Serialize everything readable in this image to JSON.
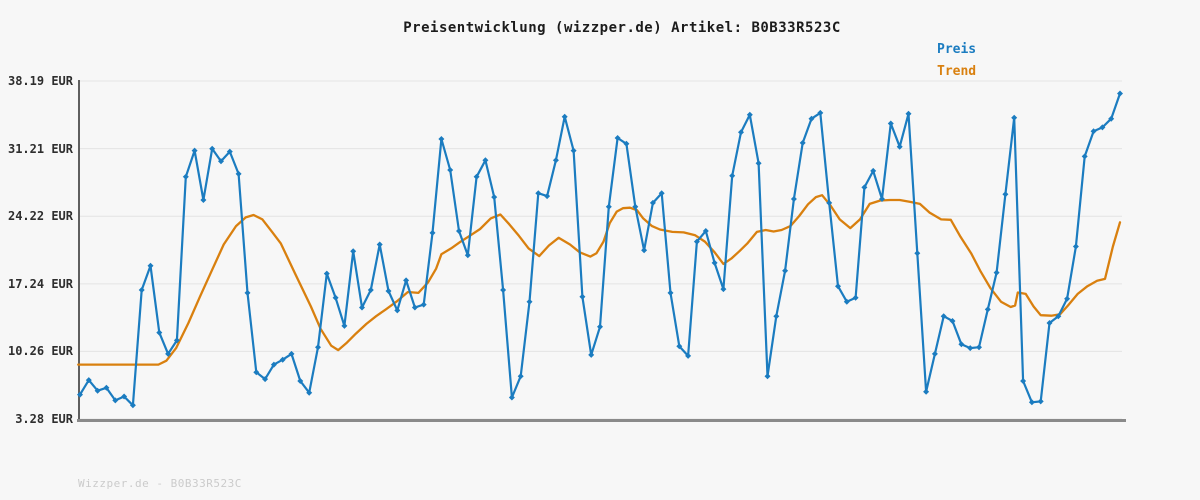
{
  "header": {
    "title": "Preisentwicklung (wizzper.de) Artikel: B0B33R523C"
  },
  "legend": [
    {
      "label": "Preis",
      "color": "#1b7cc0"
    },
    {
      "label": "Trend",
      "color": "#d9800f"
    }
  ],
  "footer": {
    "watermark": "Wizzper.de - B0B33R523C"
  },
  "colors": {
    "background": "#f7f7f7",
    "grid": "#e4e4e4",
    "y_axis_line": "#5f5f5f",
    "x_axis_line": "#8a8a8a",
    "price": "#1b7cc0",
    "trend": "#d9800f",
    "title_text": "#1c1c1c",
    "tick_text": "#2e2e2e",
    "watermark_text": "#cbcbcb"
  },
  "chart_data": {
    "type": "line",
    "title": "Preisentwicklung (wizzper.de) Artikel: B0B33R523C",
    "currency": "EUR",
    "legend_position": "top-right",
    "grid": true,
    "ylim": [
      3.28,
      38.19
    ],
    "y_axis": {
      "ticks": [
        {
          "label": "38.19 EUR",
          "value": 38.19
        },
        {
          "label": "31.21 EUR",
          "value": 31.21
        },
        {
          "label": "24.22 EUR",
          "value": 24.22
        },
        {
          "label": "17.24 EUR",
          "value": 17.24
        },
        {
          "label": "10.26 EUR",
          "value": 10.26
        },
        {
          "label": "3.28 EUR",
          "value": 3.28
        }
      ]
    },
    "x_axis": {
      "labels_visible": false,
      "sample_count": 119
    },
    "series": [
      {
        "name": "Preis",
        "style": "line+diamond-markers",
        "color": "#1b7cc0",
        "values": [
          5.8,
          7.3,
          6.2,
          6.5,
          5.2,
          5.6,
          4.7,
          16.6,
          19.1,
          12.2,
          10.0,
          11.4,
          28.3,
          31.0,
          25.9,
          31.2,
          29.9,
          30.9,
          28.6,
          16.3,
          8.1,
          7.4,
          8.9,
          9.4,
          10.0,
          7.2,
          6.0,
          10.7,
          18.3,
          15.8,
          12.9,
          20.6,
          14.8,
          16.6,
          21.3,
          16.5,
          14.5,
          17.6,
          14.8,
          15.1,
          22.5,
          32.2,
          29.0,
          22.7,
          20.2,
          28.3,
          30.0,
          26.2,
          16.6,
          5.5,
          7.7,
          15.4,
          26.6,
          26.3,
          30.0,
          34.5,
          31.0,
          15.9,
          9.9,
          12.8,
          25.2,
          32.3,
          31.7,
          25.2,
          20.7,
          25.6,
          26.6,
          16.3,
          10.8,
          9.8,
          21.6,
          22.7,
          19.4,
          16.7,
          28.4,
          32.9,
          34.7,
          29.7,
          7.7,
          13.9,
          18.6,
          26.0,
          31.8,
          34.3,
          34.9,
          25.6,
          17.0,
          15.4,
          15.8,
          27.2,
          28.9,
          26.0,
          33.8,
          31.4,
          34.8,
          20.4,
          6.1,
          10.0,
          13.9,
          13.4,
          11.0,
          10.6,
          10.7,
          14.6,
          18.4,
          26.5,
          34.4,
          7.2,
          5.0,
          5.1,
          13.2,
          13.9,
          15.7,
          21.1,
          30.4,
          33.0,
          33.4,
          34.3,
          36.9
        ]
      },
      {
        "name": "Trend",
        "style": "smooth-line",
        "color": "#d9800f",
        "points": [
          [
            -0.2,
            8.9
          ],
          [
            3,
            8.9
          ],
          [
            6,
            8.9
          ],
          [
            8.9,
            8.9
          ],
          [
            9.8,
            9.3
          ],
          [
            10.9,
            10.6
          ],
          [
            12.3,
            13.2
          ],
          [
            13.6,
            15.9
          ],
          [
            15.0,
            18.7
          ],
          [
            16.3,
            21.3
          ],
          [
            17.7,
            23.2
          ],
          [
            18.8,
            24.1
          ],
          [
            19.7,
            24.35
          ],
          [
            20.7,
            23.9
          ],
          [
            21.8,
            22.6
          ],
          [
            22.8,
            21.4
          ],
          [
            24.4,
            18.3
          ],
          [
            26.2,
            14.9
          ],
          [
            27.3,
            12.6
          ],
          [
            28.5,
            10.85
          ],
          [
            29.3,
            10.4
          ],
          [
            30.2,
            11.1
          ],
          [
            31.3,
            12.1
          ],
          [
            32.5,
            13.1
          ],
          [
            33.6,
            13.9
          ],
          [
            34.7,
            14.6
          ],
          [
            35.9,
            15.4
          ],
          [
            37.2,
            16.4
          ],
          [
            38.4,
            16.3
          ],
          [
            39.5,
            17.4
          ],
          [
            40.4,
            18.8
          ],
          [
            41.0,
            20.3
          ],
          [
            42.1,
            20.9
          ],
          [
            43.2,
            21.6
          ],
          [
            44.4,
            22.3
          ],
          [
            45.4,
            22.9
          ],
          [
            46.6,
            24.0
          ],
          [
            47.7,
            24.4
          ],
          [
            48.7,
            23.4
          ],
          [
            49.8,
            22.2
          ],
          [
            50.9,
            20.9
          ],
          [
            52.1,
            20.1
          ],
          [
            53.2,
            21.2
          ],
          [
            54.3,
            22.0
          ],
          [
            55.6,
            21.3
          ],
          [
            56.7,
            20.5
          ],
          [
            57.9,
            20.05
          ],
          [
            58.6,
            20.4
          ],
          [
            59.4,
            21.6
          ],
          [
            60.1,
            23.5
          ],
          [
            60.9,
            24.7
          ],
          [
            61.6,
            25.05
          ],
          [
            62.4,
            25.1
          ],
          [
            63.2,
            24.85
          ],
          [
            63.9,
            24.0
          ],
          [
            64.9,
            23.2
          ],
          [
            65.8,
            22.85
          ],
          [
            67.2,
            22.6
          ],
          [
            68.5,
            22.55
          ],
          [
            69.8,
            22.25
          ],
          [
            70.9,
            21.6
          ],
          [
            72.0,
            20.5
          ],
          [
            73.0,
            19.3
          ],
          [
            73.9,
            19.85
          ],
          [
            74.8,
            20.6
          ],
          [
            75.7,
            21.4
          ],
          [
            76.8,
            22.6
          ],
          [
            77.8,
            22.8
          ],
          [
            78.7,
            22.65
          ],
          [
            79.6,
            22.8
          ],
          [
            80.6,
            23.2
          ],
          [
            81.6,
            24.25
          ],
          [
            82.6,
            25.45
          ],
          [
            83.5,
            26.2
          ],
          [
            84.2,
            26.4
          ],
          [
            85.1,
            25.4
          ],
          [
            86.2,
            23.9
          ],
          [
            87.4,
            23.0
          ],
          [
            88.5,
            23.9
          ],
          [
            89.6,
            25.5
          ],
          [
            90.8,
            25.85
          ],
          [
            91.9,
            25.9
          ],
          [
            93.0,
            25.9
          ],
          [
            94.2,
            25.7
          ],
          [
            95.3,
            25.5
          ],
          [
            96.4,
            24.6
          ],
          [
            97.7,
            23.9
          ],
          [
            98.8,
            23.85
          ],
          [
            99.9,
            22.1
          ],
          [
            101.1,
            20.4
          ],
          [
            102.2,
            18.5
          ],
          [
            103.3,
            16.8
          ],
          [
            104.5,
            15.4
          ],
          [
            105.6,
            14.85
          ],
          [
            106.1,
            15.0
          ],
          [
            106.4,
            16.35
          ],
          [
            107.3,
            16.2
          ],
          [
            108.2,
            14.9
          ],
          [
            109.0,
            14.0
          ],
          [
            110.2,
            13.95
          ],
          [
            111.2,
            14.1
          ],
          [
            112.1,
            15.0
          ],
          [
            113.2,
            16.2
          ],
          [
            114.3,
            17.0
          ],
          [
            115.4,
            17.55
          ],
          [
            116.3,
            17.75
          ],
          [
            117.2,
            21.1
          ],
          [
            118.0,
            23.6
          ]
        ]
      }
    ]
  }
}
